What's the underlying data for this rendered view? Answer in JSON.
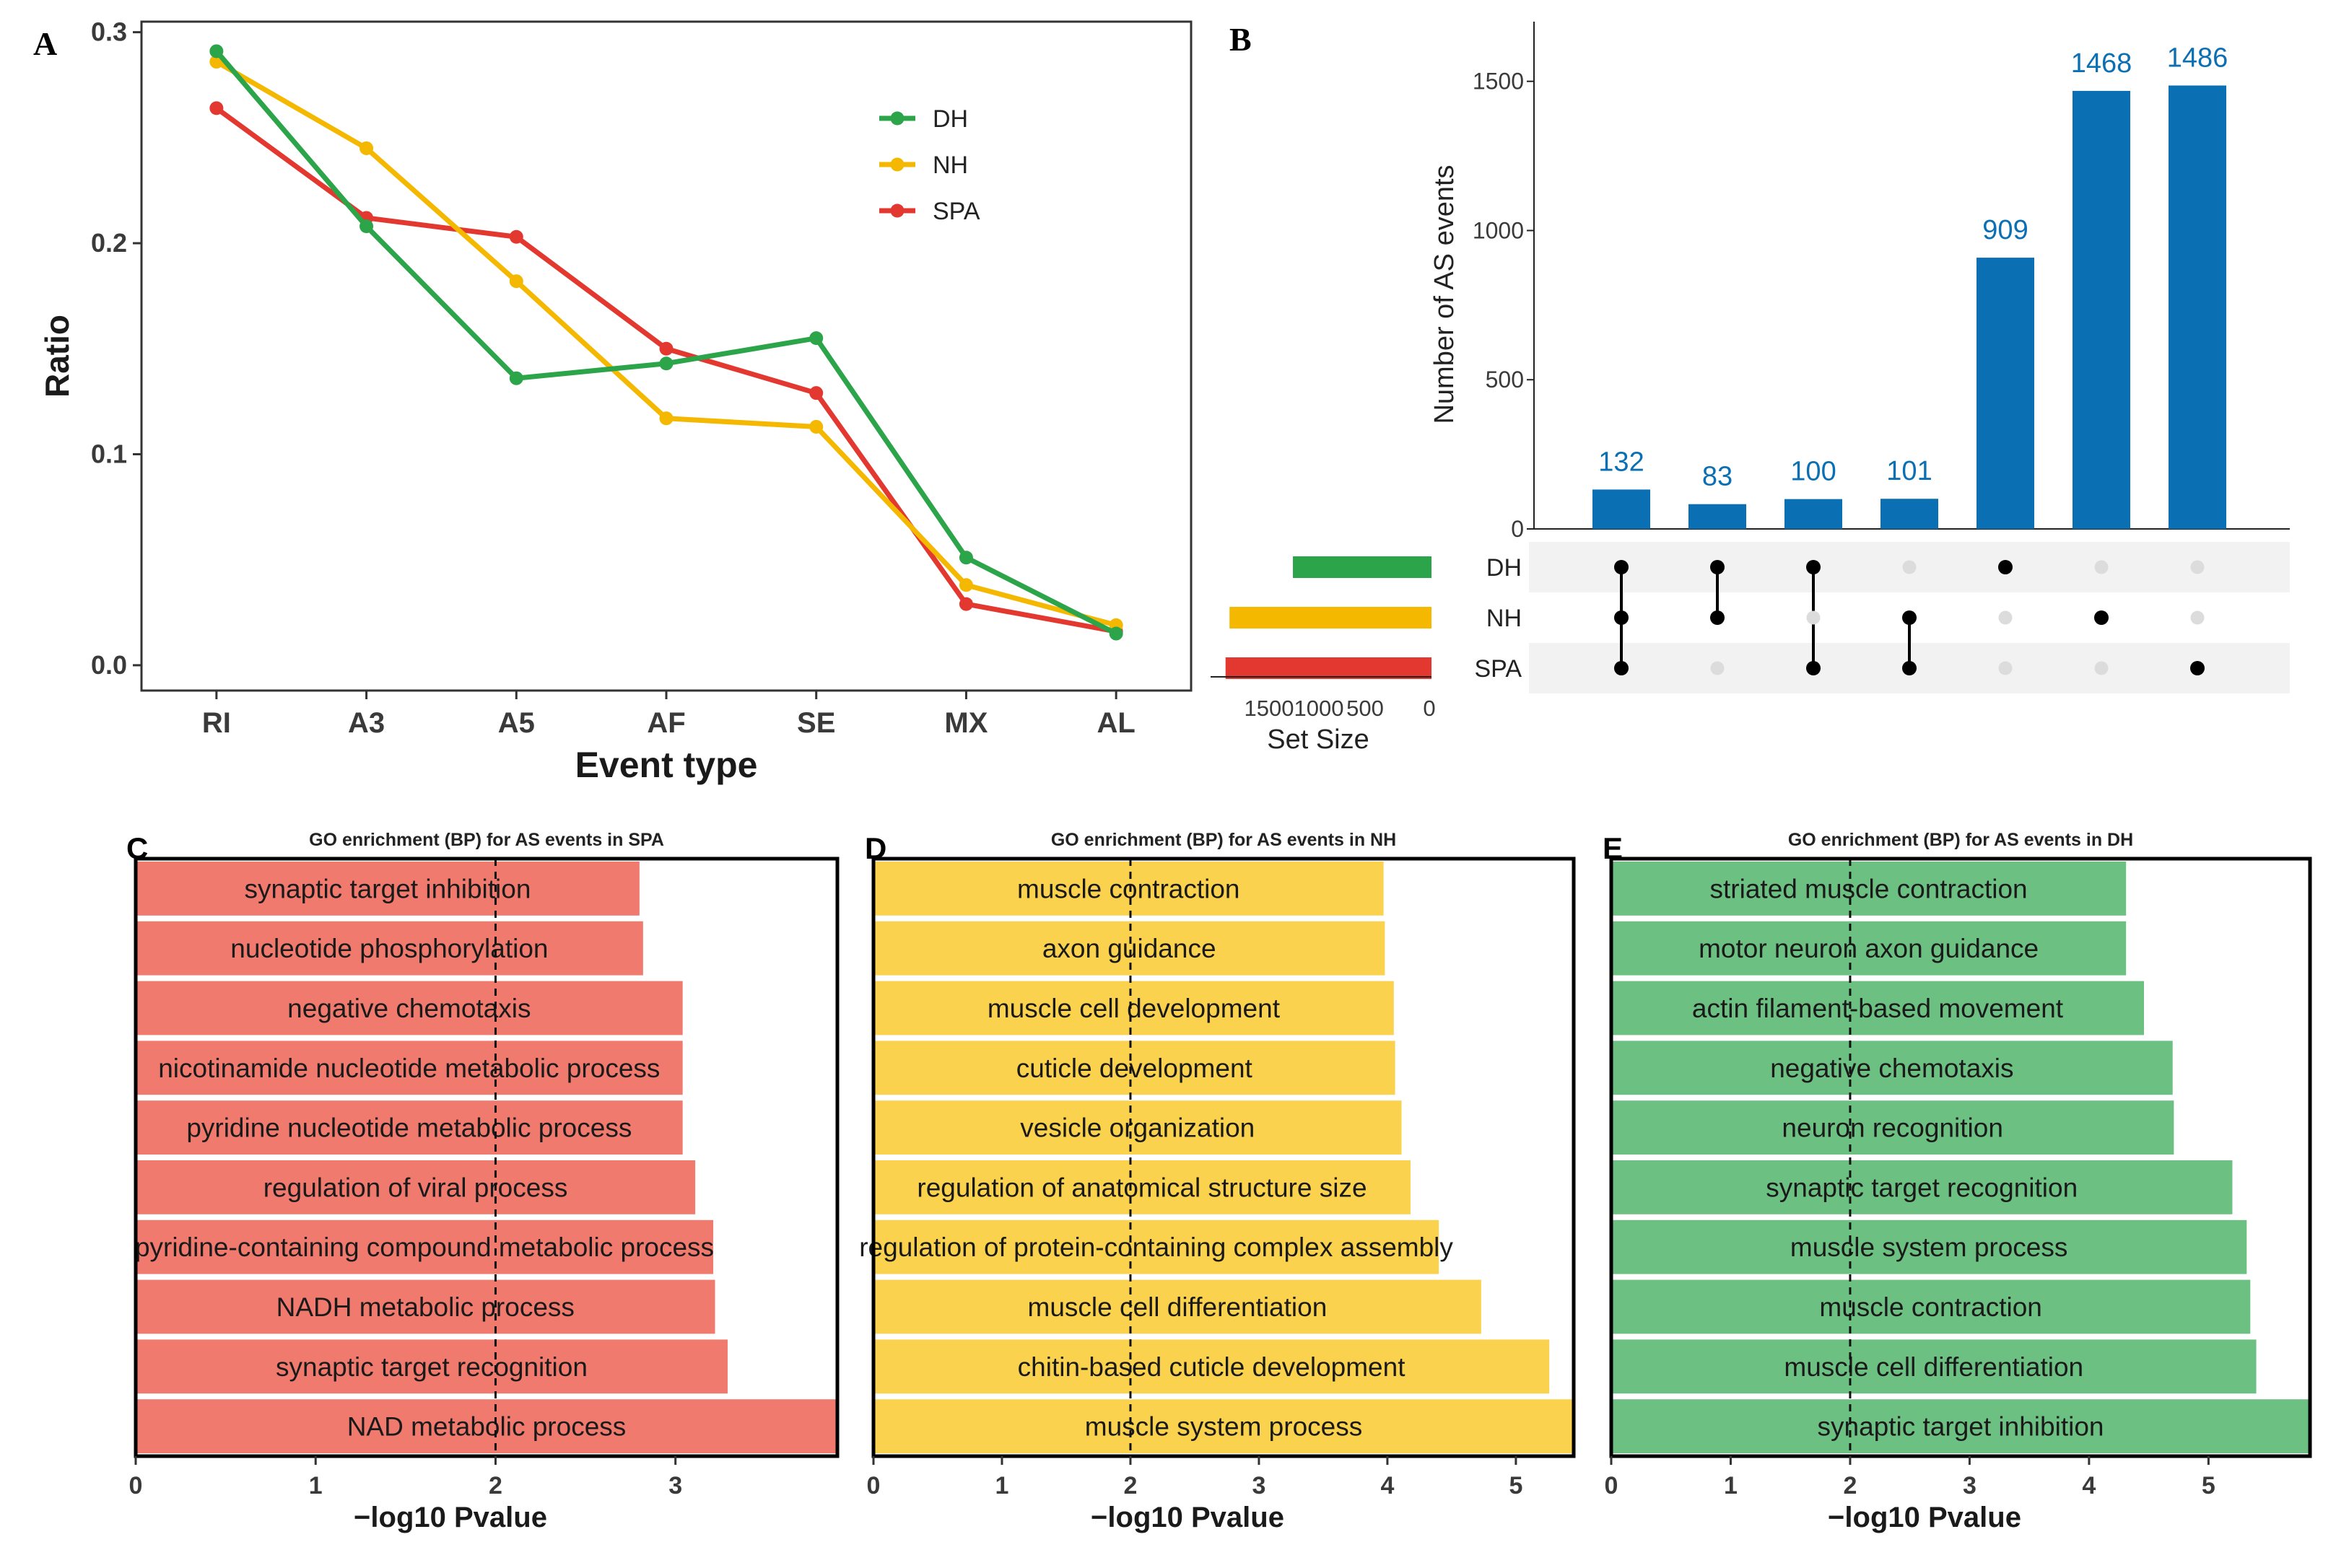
{
  "colors": {
    "DH": "#2ca44a",
    "NH": "#f5b800",
    "SPA": "#e3382f",
    "upset_bar": "#0b6fb3",
    "go_spa": "#f07a6e",
    "go_nh": "#fbd24e",
    "go_dh": "#6cc082"
  },
  "panel_labels": {
    "A": "A",
    "B": "B",
    "C": "C",
    "D": "D",
    "E": "E"
  },
  "chart_data": [
    {
      "panel": "A",
      "type": "line",
      "categories": [
        "RI",
        "A3",
        "A5",
        "AF",
        "SE",
        "MX",
        "AL"
      ],
      "series": [
        {
          "name": "DH",
          "values": [
            0.291,
            0.208,
            0.136,
            0.143,
            0.155,
            0.051,
            0.015
          ]
        },
        {
          "name": "NH",
          "values": [
            0.286,
            0.245,
            0.182,
            0.117,
            0.113,
            0.038,
            0.019
          ]
        },
        {
          "name": "SPA",
          "values": [
            0.264,
            0.212,
            0.203,
            0.15,
            0.129,
            0.029,
            0.016
          ]
        }
      ],
      "ylim": [
        -0.012,
        0.305
      ],
      "yticks": [
        "0.0",
        "0.1",
        "0.2",
        "0.3"
      ],
      "xlabel": "Event type",
      "ylabel": "Ratio",
      "legend": "top-right"
    },
    {
      "panel": "B",
      "type": "bar",
      "subtype": "upset",
      "intersections": [
        {
          "size": 132,
          "label": "132",
          "sets": [
            "DH",
            "NH",
            "SPA"
          ]
        },
        {
          "size": 83,
          "label": "83",
          "sets": [
            "DH",
            "NH"
          ]
        },
        {
          "size": 100,
          "label": "100",
          "sets": [
            "DH",
            "SPA"
          ]
        },
        {
          "size": 101,
          "label": "101",
          "sets": [
            "NH",
            "SPA"
          ]
        },
        {
          "size": 909,
          "label": "909",
          "sets": [
            "DH"
          ]
        },
        {
          "size": 1468,
          "label": "1468",
          "sets": [
            "NH"
          ]
        },
        {
          "size": 1486,
          "label": "1486",
          "sets": [
            "SPA"
          ]
        }
      ],
      "sets": [
        {
          "name": "DH",
          "size": 1224
        },
        {
          "name": "NH",
          "size": 1784
        },
        {
          "name": "SPA",
          "size": 1819
        }
      ],
      "ylim": [
        0,
        1700
      ],
      "yticks": [
        "0",
        "500",
        "1000",
        "1500"
      ],
      "ylabel": "Number of AS events",
      "set_size_label": "Set Size",
      "set_size_ticks": [
        "1500",
        "1000",
        "500",
        "0"
      ],
      "set_size_lim": [
        0,
        1900
      ]
    },
    {
      "panel": "C",
      "type": "bar",
      "orientation": "horizontal",
      "title": "GO enrichment (BP) for AS events in SPA",
      "categories": [
        "synaptic target inhibition",
        "nucleotide phosphorylation",
        "negative chemotaxis",
        "nicotinamide nucleotide metabolic process",
        "pyridine nucleotide metabolic process",
        "regulation of viral process",
        "pyridine-containing compound metabolic process",
        "NADH metabolic process",
        "synaptic target recognition",
        "NAD metabolic process"
      ],
      "values": [
        2.8,
        2.82,
        3.04,
        3.04,
        3.04,
        3.11,
        3.21,
        3.22,
        3.29,
        3.9
      ],
      "xlim": [
        0,
        3.9
      ],
      "xticks": [
        0,
        1,
        2,
        3
      ],
      "threshold": 2,
      "xlabel": "−log10 Pvalue"
    },
    {
      "panel": "D",
      "type": "bar",
      "orientation": "horizontal",
      "title": "GO enrichment (BP) for AS events in NH",
      "categories": [
        "muscle contraction",
        "axon guidance",
        "muscle cell development",
        "cuticle development",
        "vesicle organization",
        "regulation of anatomical structure size",
        "regulation of protein-containing complex assembly",
        "muscle cell differentiation",
        "chitin-based cuticle development",
        "muscle system process"
      ],
      "values": [
        3.97,
        3.98,
        4.05,
        4.06,
        4.11,
        4.18,
        4.4,
        4.73,
        5.26,
        5.45
      ],
      "xlim": [
        0,
        5.45
      ],
      "xticks": [
        0,
        1,
        2,
        3,
        4,
        5
      ],
      "threshold": 2,
      "xlabel": "−log10 Pvalue"
    },
    {
      "panel": "E",
      "type": "bar",
      "orientation": "horizontal",
      "title": "GO enrichment (BP) for AS events in DH",
      "categories": [
        "striated muscle contraction",
        "motor neuron axon guidance",
        "actin filament-based movement",
        "negative chemotaxis",
        "neuron recognition",
        "synaptic target recognition",
        "muscle system process",
        "muscle contraction",
        "muscle cell differentiation",
        "synaptic target inhibition"
      ],
      "values": [
        4.31,
        4.31,
        4.46,
        4.7,
        4.71,
        5.2,
        5.32,
        5.35,
        5.4,
        5.85
      ],
      "xlim": [
        0,
        5.85
      ],
      "xticks": [
        0,
        1,
        2,
        3,
        4,
        5
      ],
      "threshold": 2,
      "xlabel": "−log10 Pvalue"
    }
  ]
}
